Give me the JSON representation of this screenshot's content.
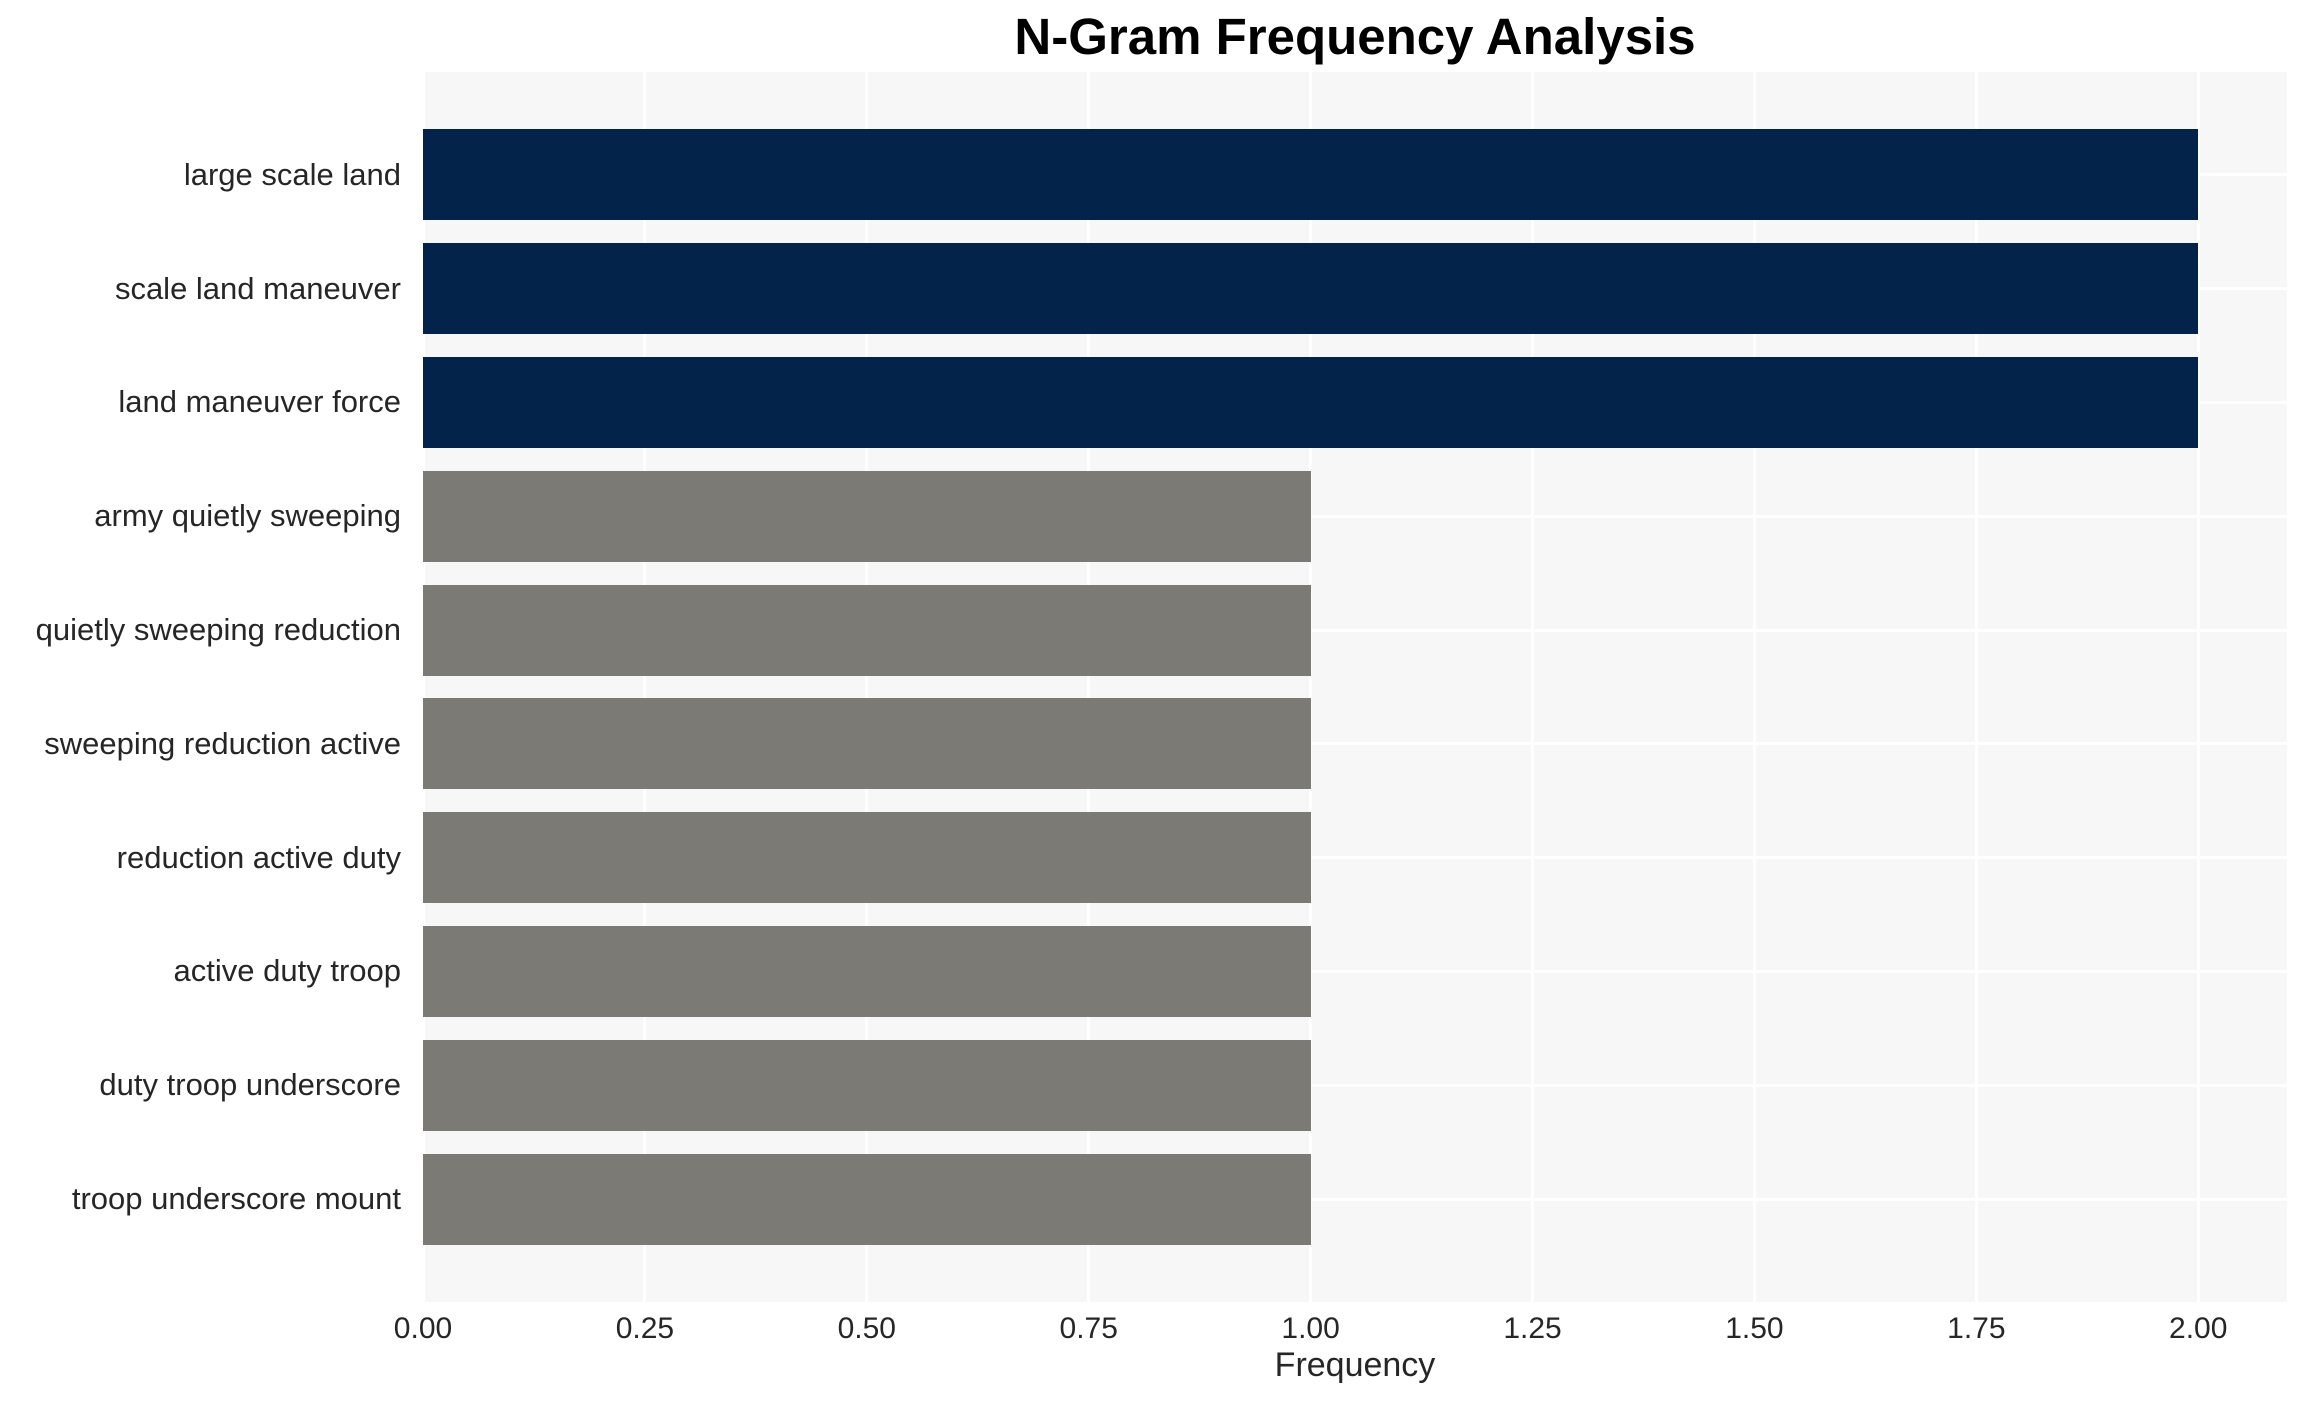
{
  "chart_data": {
    "type": "bar",
    "orientation": "horizontal",
    "title": "N-Gram Frequency Analysis",
    "xlabel": "Frequency",
    "ylabel": "",
    "categories": [
      "large scale land",
      "scale land maneuver",
      "land maneuver force",
      "army quietly sweeping",
      "quietly sweeping reduction",
      "sweeping reduction active",
      "reduction active duty",
      "active duty troop",
      "duty troop underscore",
      "troop underscore mount"
    ],
    "values": [
      2,
      2,
      2,
      1,
      1,
      1,
      1,
      1,
      1,
      1
    ],
    "bar_colors": [
      "#03234B",
      "#03234B",
      "#03234B",
      "#7B7A75",
      "#7B7A75",
      "#7B7A75",
      "#7B7A75",
      "#7B7A75",
      "#7B7A75",
      "#7B7A75"
    ],
    "xlim": [
      0,
      2.1
    ],
    "xticks": [
      0.0,
      0.25,
      0.5,
      0.75,
      1.0,
      1.25,
      1.5,
      1.75,
      2.0
    ],
    "xtick_labels": [
      "0.00",
      "0.25",
      "0.50",
      "0.75",
      "1.00",
      "1.25",
      "1.50",
      "1.75",
      "2.00"
    ],
    "grid": true,
    "legend": false,
    "colors": {
      "bar_highlight": "#03234B",
      "bar_default": "#7B7A75",
      "plot_background": "#F7F7F7",
      "gridline": "#FFFFFF",
      "text": "#262626",
      "title": "#000000"
    }
  }
}
